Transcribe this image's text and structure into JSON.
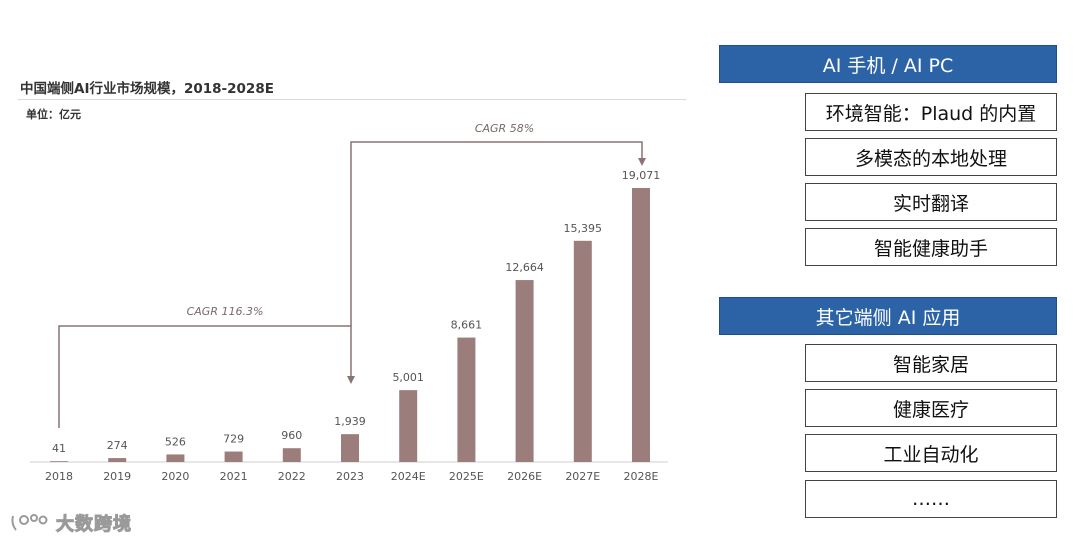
{
  "chart_data": {
    "type": "bar",
    "title": "中国端侧AI行业市场规模，2018-2028E",
    "unit": "单位：亿元",
    "categories": [
      "2018",
      "2019",
      "2020",
      "2021",
      "2022",
      "2023",
      "2024E",
      "2025E",
      "2026E",
      "2027E",
      "2028E"
    ],
    "values": [
      41,
      274,
      526,
      729,
      960,
      1939,
      5001,
      8661,
      12664,
      15395,
      19071
    ],
    "data_labels": [
      "41",
      "274",
      "526",
      "729",
      "960",
      "1,939",
      "5,001",
      "8,661",
      "12,664",
      "15,395",
      "19,071"
    ],
    "ylim": [
      0,
      19071
    ],
    "grid": false,
    "bar_color": "#9b7e7c",
    "annotations": [
      {
        "label": "CAGR 116.3%",
        "from": "2018",
        "to": "2023"
      },
      {
        "label": "CAGR 58%",
        "from": "2023",
        "to": "2028E"
      }
    ]
  },
  "panels": [
    {
      "header": "AI 手机 / AI PC",
      "items": [
        "环境智能：Plaud 的内置",
        "多模态的本地处理",
        "实时翻译",
        "智能健康助手"
      ]
    },
    {
      "header": "其它端侧 AI 应用",
      "items": [
        "智能家居",
        "健康医疗",
        "工业自动化",
        "……"
      ]
    }
  ],
  "watermark": {
    "text": "大数跨境",
    "icon": "ip-logo-icon"
  }
}
